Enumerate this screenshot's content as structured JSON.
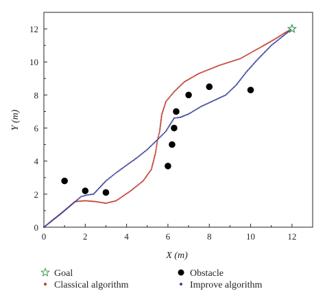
{
  "chart_data": {
    "type": "scatter",
    "title": "",
    "xlabel": "X (m)",
    "ylabel": "Y (m)",
    "xlim": [
      0,
      13
    ],
    "ylim": [
      0,
      13
    ],
    "xticks": [
      0,
      2,
      4,
      6,
      8,
      10,
      12
    ],
    "yticks": [
      0,
      2,
      4,
      6,
      8,
      10,
      12
    ],
    "grid": false,
    "legend_position": "bottom",
    "goal": {
      "name": "Goal",
      "x": 12,
      "y": 12,
      "color": "#3a9a4a"
    },
    "obstacles": {
      "name": "Obstacle",
      "color": "#000000",
      "points": [
        [
          1,
          2.8
        ],
        [
          2,
          2.2
        ],
        [
          3,
          2.1
        ],
        [
          6,
          3.7
        ],
        [
          6.2,
          5.0
        ],
        [
          6.3,
          6.0
        ],
        [
          6.4,
          7.0
        ],
        [
          7,
          8.0
        ],
        [
          8,
          8.5
        ],
        [
          10,
          8.3
        ]
      ]
    },
    "series": [
      {
        "name": "Classical algorithm",
        "color": "#c0392b",
        "points": [
          [
            0,
            0
          ],
          [
            0.8,
            0.8
          ],
          [
            1.5,
            1.55
          ],
          [
            2.0,
            1.6
          ],
          [
            2.5,
            1.55
          ],
          [
            3.0,
            1.45
          ],
          [
            3.5,
            1.6
          ],
          [
            4.2,
            2.2
          ],
          [
            4.8,
            2.8
          ],
          [
            5.2,
            3.5
          ],
          [
            5.4,
            4.5
          ],
          [
            5.5,
            5.3
          ],
          [
            5.6,
            5.8
          ],
          [
            5.7,
            6.8
          ],
          [
            5.9,
            7.6
          ],
          [
            6.3,
            8.2
          ],
          [
            6.8,
            8.8
          ],
          [
            7.5,
            9.3
          ],
          [
            8.5,
            9.8
          ],
          [
            9.5,
            10.2
          ],
          [
            10.5,
            10.9
          ],
          [
            11.2,
            11.4
          ],
          [
            11.7,
            11.8
          ],
          [
            12,
            12
          ]
        ]
      },
      {
        "name": "Improve algorithm",
        "color": "#3a3f9a",
        "points": [
          [
            0,
            0
          ],
          [
            1,
            1.0
          ],
          [
            1.8,
            1.85
          ],
          [
            2.1,
            1.95
          ],
          [
            2.4,
            2.0
          ],
          [
            2.7,
            2.4
          ],
          [
            3.0,
            2.8
          ],
          [
            3.5,
            3.3
          ],
          [
            4.0,
            3.75
          ],
          [
            4.5,
            4.2
          ],
          [
            5.0,
            4.7
          ],
          [
            5.5,
            5.3
          ],
          [
            5.9,
            5.8
          ],
          [
            6.1,
            6.2
          ],
          [
            6.3,
            6.6
          ],
          [
            6.6,
            6.65
          ],
          [
            7.0,
            6.85
          ],
          [
            7.6,
            7.3
          ],
          [
            8.2,
            7.65
          ],
          [
            8.8,
            8.0
          ],
          [
            9.3,
            8.6
          ],
          [
            9.8,
            9.4
          ],
          [
            10.3,
            10.1
          ],
          [
            11.0,
            11.0
          ],
          [
            11.6,
            11.6
          ],
          [
            12,
            12
          ]
        ]
      }
    ]
  }
}
